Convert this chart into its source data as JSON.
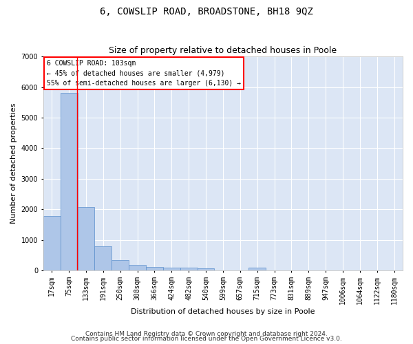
{
  "title": "6, COWSLIP ROAD, BROADSTONE, BH18 9QZ",
  "subtitle": "Size of property relative to detached houses in Poole",
  "xlabel": "Distribution of detached houses by size in Poole",
  "ylabel": "Number of detached properties",
  "categories": [
    "17sqm",
    "75sqm",
    "133sqm",
    "191sqm",
    "250sqm",
    "308sqm",
    "366sqm",
    "424sqm",
    "482sqm",
    "540sqm",
    "599sqm",
    "657sqm",
    "715sqm",
    "773sqm",
    "831sqm",
    "889sqm",
    "947sqm",
    "1006sqm",
    "1064sqm",
    "1122sqm",
    "1180sqm"
  ],
  "bar_heights": [
    1780,
    5820,
    2080,
    800,
    340,
    190,
    115,
    100,
    95,
    80,
    0,
    0,
    95,
    0,
    0,
    0,
    0,
    0,
    0,
    0,
    0
  ],
  "bar_color": "#aec6e8",
  "bar_edge_color": "#5b8fcc",
  "property_label": "6 COWSLIP ROAD: 103sqm",
  "annotation_line1": "← 45% of detached houses are smaller (4,979)",
  "annotation_line2": "55% of semi-detached houses are larger (6,130) →",
  "ylim": [
    0,
    7000
  ],
  "yticks": [
    0,
    1000,
    2000,
    3000,
    4000,
    5000,
    6000,
    7000
  ],
  "footnote1": "Contains HM Land Registry data © Crown copyright and database right 2024.",
  "footnote2": "Contains public sector information licensed under the Open Government Licence v3.0.",
  "fig_bg_color": "#ffffff",
  "plot_bg_color": "#dce6f5",
  "grid_color": "#ffffff",
  "title_fontsize": 10,
  "subtitle_fontsize": 9,
  "axis_label_fontsize": 8,
  "tick_fontsize": 7,
  "footnote_fontsize": 6.5,
  "red_line_index": 1.47
}
